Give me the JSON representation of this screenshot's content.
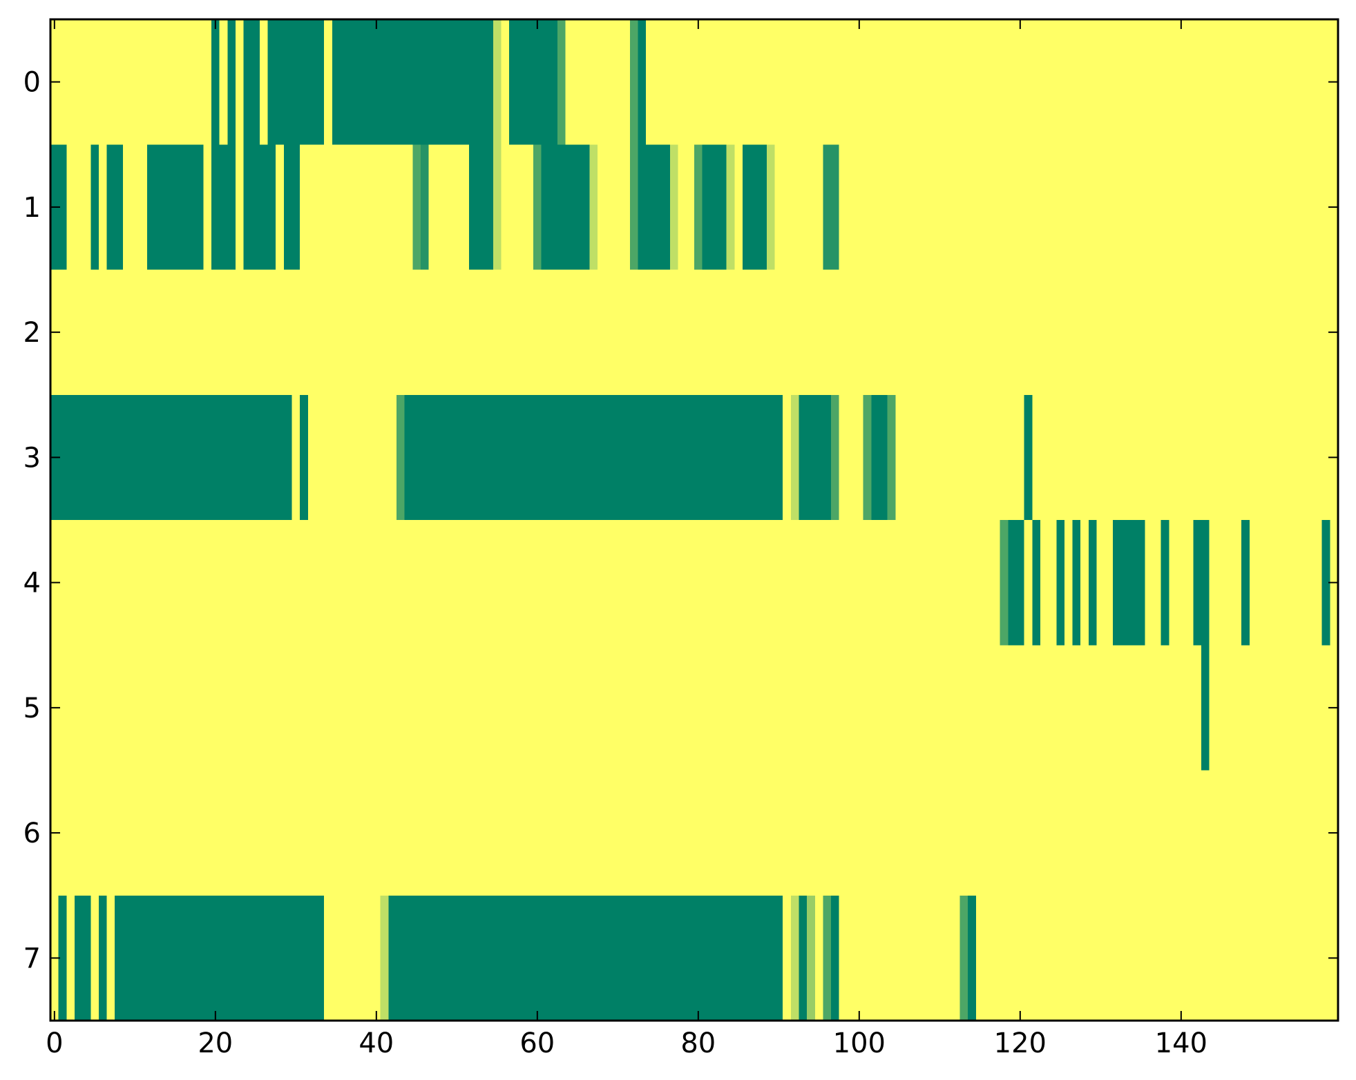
{
  "chart_data": {
    "type": "heatmap",
    "title": "",
    "xlabel": "",
    "ylabel": "",
    "xlim": [
      -0.5,
      159.5
    ],
    "ylim": [
      7.5,
      -0.5
    ],
    "x_ticks": [
      0,
      20,
      40,
      60,
      80,
      100,
      120,
      140
    ],
    "y_ticks": [
      0,
      1,
      2,
      3,
      4,
      5,
      6,
      7
    ],
    "x_tick_labels": [
      "0",
      "20",
      "40",
      "60",
      "80",
      "100",
      "120",
      "140"
    ],
    "y_tick_labels": [
      "0",
      "1",
      "2",
      "3",
      "4",
      "5",
      "6",
      "7"
    ],
    "grid": false,
    "colormap": "summer",
    "background_value": 1.0,
    "colors": {
      "low": "#008066",
      "high": "#ffff66",
      "mid_dark": "#2a9560",
      "mid": "#55aa66",
      "mid_light": "#c4e276"
    },
    "cells": [
      {
        "row": 0,
        "x0": 20,
        "x1": 20,
        "value": 0.0
      },
      {
        "row": 0,
        "x0": 22,
        "x1": 22,
        "value": 0.0
      },
      {
        "row": 0,
        "x0": 24,
        "x1": 25,
        "value": 0.0
      },
      {
        "row": 0,
        "x0": 27,
        "x1": 33,
        "value": 0.0
      },
      {
        "row": 0,
        "x0": 35,
        "x1": 54,
        "value": 0.0
      },
      {
        "row": 0,
        "x0": 55,
        "x1": 55,
        "value": 0.75
      },
      {
        "row": 0,
        "x0": 57,
        "x1": 62,
        "value": 0.0
      },
      {
        "row": 0,
        "x0": 63,
        "x1": 63,
        "value": 0.3
      },
      {
        "row": 0,
        "x0": 72,
        "x1": 72,
        "value": 0.3
      },
      {
        "row": 0,
        "x0": 73,
        "x1": 73,
        "value": 0.0
      },
      {
        "row": 1,
        "x0": 0,
        "x1": 1,
        "value": 0.0
      },
      {
        "row": 1,
        "x0": 5,
        "x1": 5,
        "value": 0.0
      },
      {
        "row": 1,
        "x0": 7,
        "x1": 8,
        "value": 0.0
      },
      {
        "row": 1,
        "x0": 12,
        "x1": 18,
        "value": 0.0
      },
      {
        "row": 1,
        "x0": 20,
        "x1": 22,
        "value": 0.0
      },
      {
        "row": 1,
        "x0": 24,
        "x1": 27,
        "value": 0.0
      },
      {
        "row": 1,
        "x0": 29,
        "x1": 30,
        "value": 0.0
      },
      {
        "row": 1,
        "x0": 45,
        "x1": 45,
        "value": 0.3
      },
      {
        "row": 1,
        "x0": 46,
        "x1": 46,
        "value": 0.15
      },
      {
        "row": 1,
        "x0": 52,
        "x1": 54,
        "value": 0.0
      },
      {
        "row": 1,
        "x0": 55,
        "x1": 55,
        "value": 0.75
      },
      {
        "row": 1,
        "x0": 60,
        "x1": 60,
        "value": 0.3
      },
      {
        "row": 1,
        "x0": 61,
        "x1": 66,
        "value": 0.0
      },
      {
        "row": 1,
        "x0": 67,
        "x1": 67,
        "value": 0.75
      },
      {
        "row": 1,
        "x0": 72,
        "x1": 72,
        "value": 0.3
      },
      {
        "row": 1,
        "x0": 73,
        "x1": 76,
        "value": 0.0
      },
      {
        "row": 1,
        "x0": 77,
        "x1": 77,
        "value": 0.75
      },
      {
        "row": 1,
        "x0": 80,
        "x1": 80,
        "value": 0.3
      },
      {
        "row": 1,
        "x0": 81,
        "x1": 83,
        "value": 0.0
      },
      {
        "row": 1,
        "x0": 84,
        "x1": 84,
        "value": 0.75
      },
      {
        "row": 1,
        "x0": 86,
        "x1": 88,
        "value": 0.0
      },
      {
        "row": 1,
        "x0": 89,
        "x1": 89,
        "value": 0.75
      },
      {
        "row": 1,
        "x0": 96,
        "x1": 97,
        "value": 0.15
      },
      {
        "row": 3,
        "x0": -0.5,
        "x1": 29,
        "value": 0.0
      },
      {
        "row": 3,
        "x0": 31,
        "x1": 31,
        "value": 0.0
      },
      {
        "row": 3,
        "x0": 43,
        "x1": 43,
        "value": 0.3
      },
      {
        "row": 3,
        "x0": 44,
        "x1": 90,
        "value": 0.0
      },
      {
        "row": 3,
        "x0": 92,
        "x1": 92,
        "value": 0.75
      },
      {
        "row": 3,
        "x0": 93,
        "x1": 96,
        "value": 0.0
      },
      {
        "row": 3,
        "x0": 97,
        "x1": 97,
        "value": 0.3
      },
      {
        "row": 3,
        "x0": 101,
        "x1": 101,
        "value": 0.3
      },
      {
        "row": 3,
        "x0": 102,
        "x1": 103,
        "value": 0.0
      },
      {
        "row": 3,
        "x0": 104,
        "x1": 104,
        "value": 0.3
      },
      {
        "row": 3,
        "x0": 121,
        "x1": 121,
        "value": 0.0
      },
      {
        "row": 4,
        "x0": 118,
        "x1": 118,
        "value": 0.3
      },
      {
        "row": 4,
        "x0": 119,
        "x1": 120,
        "value": 0.0
      },
      {
        "row": 4,
        "x0": 122,
        "x1": 122,
        "value": 0.0
      },
      {
        "row": 4,
        "x0": 125,
        "x1": 125,
        "value": 0.0
      },
      {
        "row": 4,
        "x0": 127,
        "x1": 127,
        "value": 0.0
      },
      {
        "row": 4,
        "x0": 129,
        "x1": 129,
        "value": 0.0
      },
      {
        "row": 4,
        "x0": 132,
        "x1": 135,
        "value": 0.0
      },
      {
        "row": 4,
        "x0": 138,
        "x1": 138,
        "value": 0.0
      },
      {
        "row": 4,
        "x0": 142,
        "x1": 143,
        "value": 0.0
      },
      {
        "row": 4,
        "x0": 148,
        "x1": 148,
        "value": 0.0
      },
      {
        "row": 4,
        "x0": 158,
        "x1": 158,
        "value": 0.0
      },
      {
        "row": 5,
        "x0": 143,
        "x1": 143,
        "value": 0.0
      },
      {
        "row": 7,
        "x0": 1,
        "x1": 1,
        "value": 0.0
      },
      {
        "row": 7,
        "x0": 3,
        "x1": 4,
        "value": 0.0
      },
      {
        "row": 7,
        "x0": 6,
        "x1": 6,
        "value": 0.0
      },
      {
        "row": 7,
        "x0": 8,
        "x1": 33,
        "value": 0.0
      },
      {
        "row": 7,
        "x0": 41,
        "x1": 41,
        "value": 0.75
      },
      {
        "row": 7,
        "x0": 42,
        "x1": 90,
        "value": 0.0
      },
      {
        "row": 7,
        "x0": 92,
        "x1": 92,
        "value": 0.75
      },
      {
        "row": 7,
        "x0": 93,
        "x1": 93,
        "value": 0.0
      },
      {
        "row": 7,
        "x0": 94,
        "x1": 94,
        "value": 0.6
      },
      {
        "row": 7,
        "x0": 96,
        "x1": 96,
        "value": 0.3
      },
      {
        "row": 7,
        "x0": 97,
        "x1": 97,
        "value": 0.0
      },
      {
        "row": 7,
        "x0": 113,
        "x1": 113,
        "value": 0.3
      },
      {
        "row": 7,
        "x0": 114,
        "x1": 114,
        "value": 0.0
      }
    ]
  }
}
